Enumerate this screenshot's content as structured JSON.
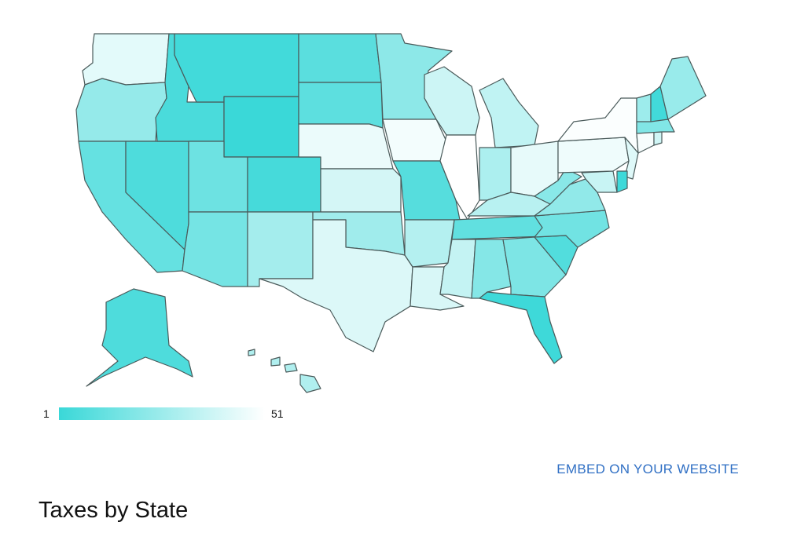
{
  "map": {
    "title": "Taxes by State",
    "legend": {
      "min_label": "1",
      "max_label": "51",
      "color_low_rank": "#3ad8d8",
      "color_high_rank": "#ffffff"
    },
    "embed_label": "EMBED ON YOUR WEBSITE",
    "colors": {
      "link": "#2f6fc4",
      "border": "#4a5a5a"
    },
    "rank_by_state": {
      "WA": 44,
      "OR": 24,
      "CA": 12,
      "NV": 6,
      "ID": 5,
      "MT": 3,
      "WY": 1,
      "UT": 14,
      "AZ": 16,
      "CO": 4,
      "NM": 28,
      "ND": 9,
      "SD": 10,
      "NE": 46,
      "KS": 40,
      "OK": 27,
      "TX": 42,
      "MN": 22,
      "IA": 48,
      "MO": 8,
      "AR": 32,
      "LA": 41,
      "WI": 38,
      "IL": 51,
      "MI": 35,
      "IN": 30,
      "OH": 45,
      "KY": 33,
      "TN": 11,
      "MS": 36,
      "AL": 20,
      "GA": 18,
      "FL": 2,
      "SC": 7,
      "NC": 15,
      "VA": 23,
      "WV": 21,
      "PA": 47,
      "NY": 50,
      "VT": 26,
      "NH": 3,
      "ME": 25,
      "MA": 19,
      "CT": 49,
      "RI": 39,
      "NJ": 43,
      "DE": 2,
      "MD": 37,
      "AK": 6,
      "HI": 31
    }
  }
}
